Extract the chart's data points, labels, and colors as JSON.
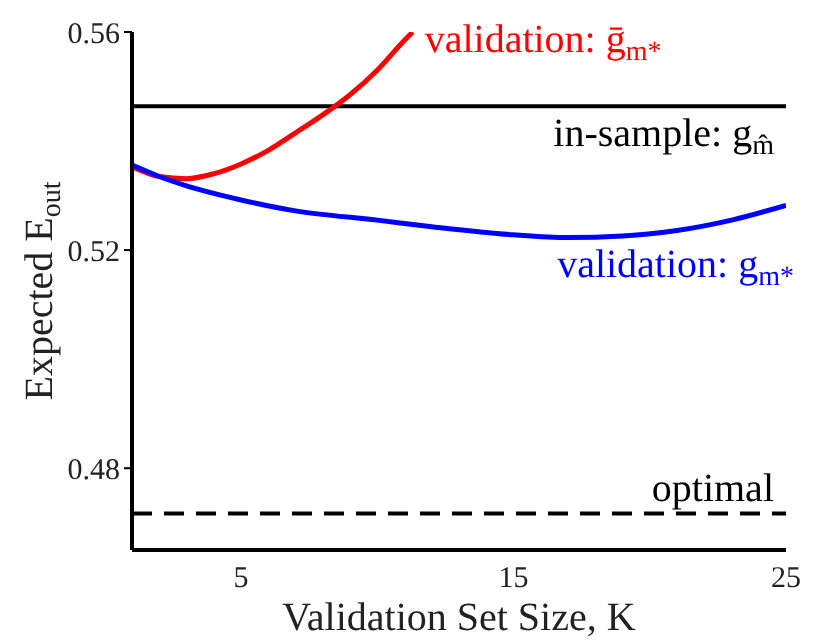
{
  "chart_data": {
    "type": "line",
    "xlabel": "Validation Set Size, K",
    "ylabel": "Expected E$_{out}$",
    "xlim": [
      1,
      25
    ],
    "ylim": [
      0.465,
      0.56
    ],
    "xticks": [
      5,
      15,
      25
    ],
    "yticks": [
      0.48,
      0.52,
      0.56
    ],
    "grid": false,
    "legend": false,
    "marker": "none",
    "series": [
      {
        "name": "validation: ḡ$_{m*}$",
        "color": "#ff0000",
        "x": [
          1,
          2,
          3,
          4,
          5,
          6,
          7,
          8,
          9,
          10,
          11,
          11.3
        ],
        "values": [
          0.5353,
          0.5335,
          0.5331,
          0.534,
          0.5358,
          0.5383,
          0.5415,
          0.5448,
          0.5485,
          0.553,
          0.5585,
          0.56
        ]
      },
      {
        "name": "validation: g$_{m*}$",
        "color": "#0000ff",
        "x": [
          1,
          2,
          3,
          4,
          5,
          7,
          10,
          12,
          15,
          17,
          19,
          21,
          23,
          25
        ],
        "values": [
          0.5356,
          0.5335,
          0.5318,
          0.5304,
          0.5292,
          0.5272,
          0.5255,
          0.5243,
          0.5228,
          0.5223,
          0.5226,
          0.5236,
          0.5255,
          0.5282
        ]
      }
    ],
    "ref_lines": [
      {
        "axis": "y",
        "value": 0.5464,
        "label": "in-sample: g$_{m̂}$",
        "color": "#000000",
        "line_style": "solid"
      },
      {
        "axis": "y",
        "value": 0.4717,
        "label": "optimal",
        "color": "#000000",
        "line_style": "dashed"
      }
    ]
  }
}
